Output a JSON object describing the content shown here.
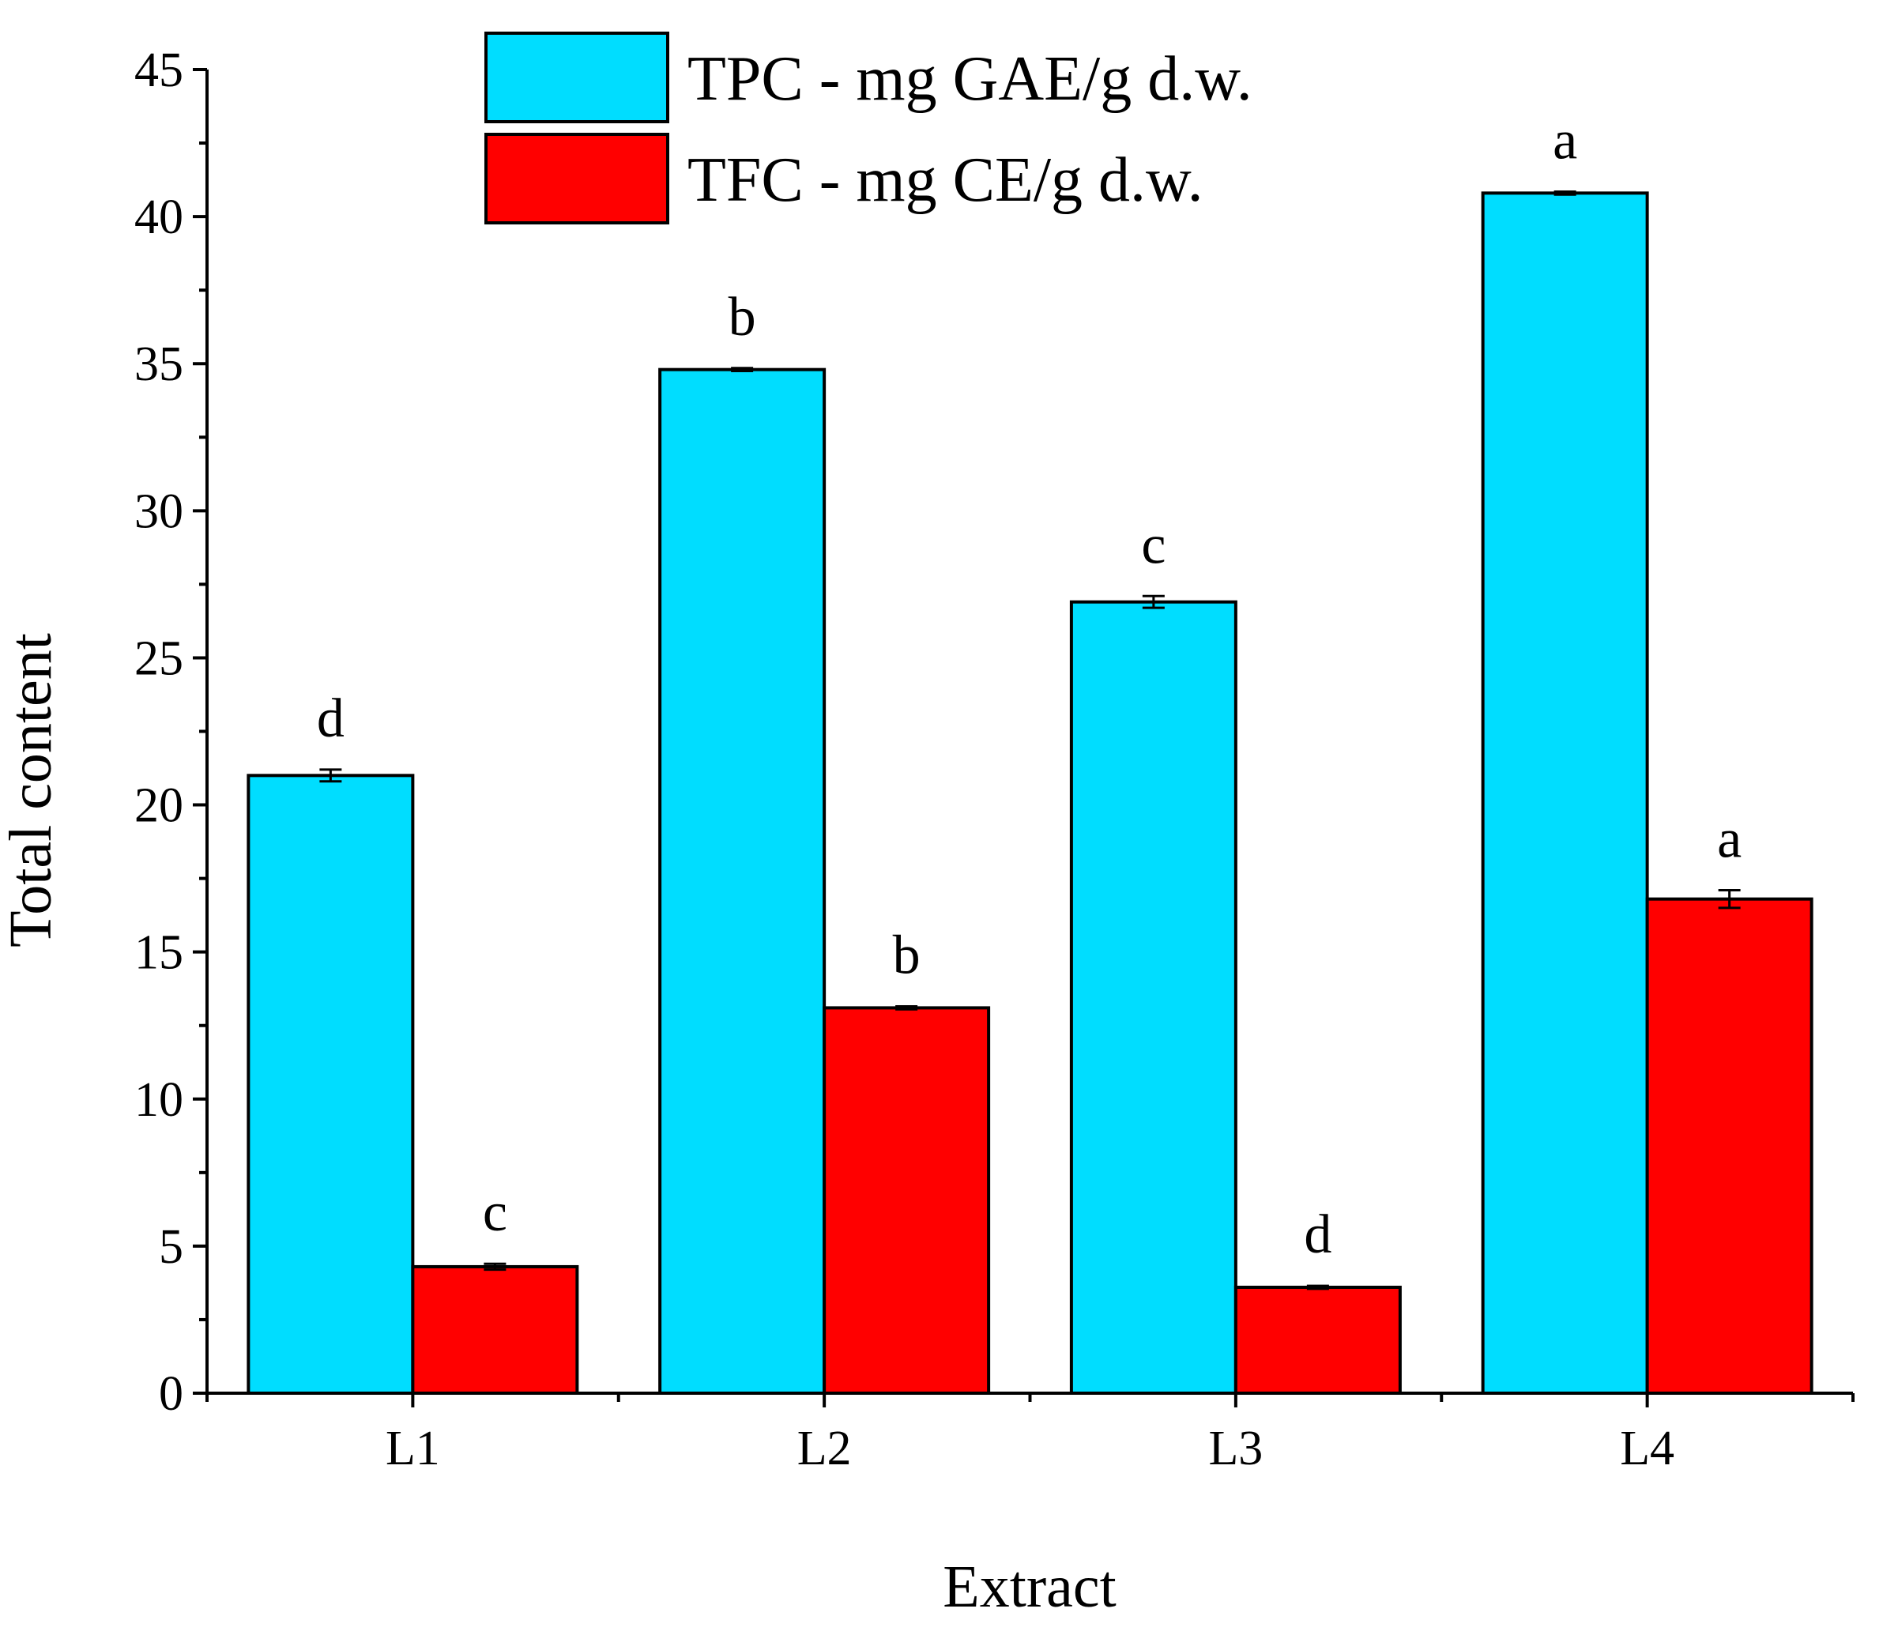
{
  "chart_data": {
    "type": "bar",
    "title": "",
    "xlabel": "Extract",
    "ylabel": "Total content",
    "ylim": [
      0,
      45
    ],
    "yticks": [
      "0",
      "5",
      "10",
      "15",
      "20",
      "25",
      "30",
      "35",
      "40",
      "45"
    ],
    "categories": [
      "L1",
      "L2",
      "L3",
      "L4"
    ],
    "grid": false,
    "legend_position": "top-center",
    "series": [
      {
        "name": "TPC - mg GAE/g d.w.",
        "color": "#00DDFF",
        "values": [
          21.0,
          34.8,
          26.9,
          40.8
        ],
        "errors": [
          0.2,
          0.05,
          0.2,
          0.05
        ],
        "significance": [
          "d",
          "b",
          "c",
          "a"
        ]
      },
      {
        "name": "TFC - mg CE/g d.w.",
        "color": "#FF0000",
        "values": [
          4.3,
          13.1,
          3.6,
          16.8
        ],
        "errors": [
          0.1,
          0.05,
          0.05,
          0.3
        ],
        "significance": [
          "c",
          "b",
          "d",
          "a"
        ]
      }
    ]
  }
}
